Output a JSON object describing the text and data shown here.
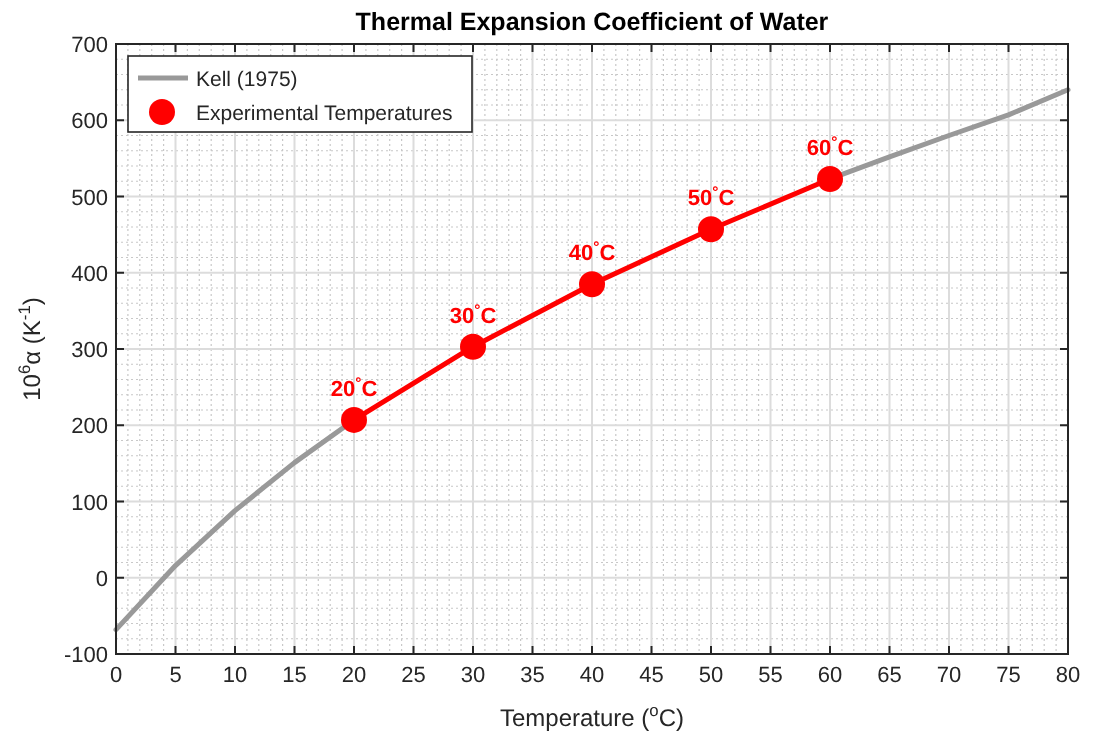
{
  "chart_data": {
    "type": "line",
    "title": "Thermal Expansion Coefficient of Water",
    "xlabel": "Temperature ($^{o}$C)",
    "ylabel": "10$^{6}$α (K$^{-1}$)",
    "xlim": [
      0,
      80
    ],
    "xticks": [
      0,
      5,
      10,
      15,
      20,
      25,
      30,
      35,
      40,
      45,
      50,
      55,
      60,
      65,
      70,
      75,
      80
    ],
    "ylim": [
      -100,
      700
    ],
    "yticks": [
      -100,
      0,
      100,
      200,
      300,
      400,
      500,
      600,
      700
    ],
    "grid": true,
    "legend": "top left",
    "series": [
      {
        "name": "Kell (1975)",
        "color": "#999999",
        "marker": "none",
        "x": [
          0,
          5,
          10,
          15,
          20,
          25,
          30,
          35,
          40,
          45,
          50,
          55,
          60,
          65,
          70,
          75,
          80
        ],
        "values": [
          -68,
          16,
          88,
          151,
          207,
          null,
          null,
          null,
          null,
          null,
          null,
          null,
          523,
          552,
          580,
          607,
          640
        ]
      },
      {
        "name": "Experimental Temperatures",
        "color": "#ff0000",
        "marker": "circle",
        "x": [
          20,
          30,
          40,
          50,
          60
        ],
        "values": [
          207,
          303,
          385,
          457,
          523
        ]
      }
    ],
    "annotations": [
      {
        "text": "20$^{°}$C",
        "x": 20,
        "y": 207
      },
      {
        "text": "30$^{°}$C",
        "x": 30,
        "y": 303
      },
      {
        "text": "40$^{°}$C",
        "x": 40,
        "y": 385
      },
      {
        "text": "50$^{°}$C",
        "x": 50,
        "y": 457
      },
      {
        "text": "60$^{°}$C",
        "x": 60,
        "y": 523
      }
    ]
  }
}
